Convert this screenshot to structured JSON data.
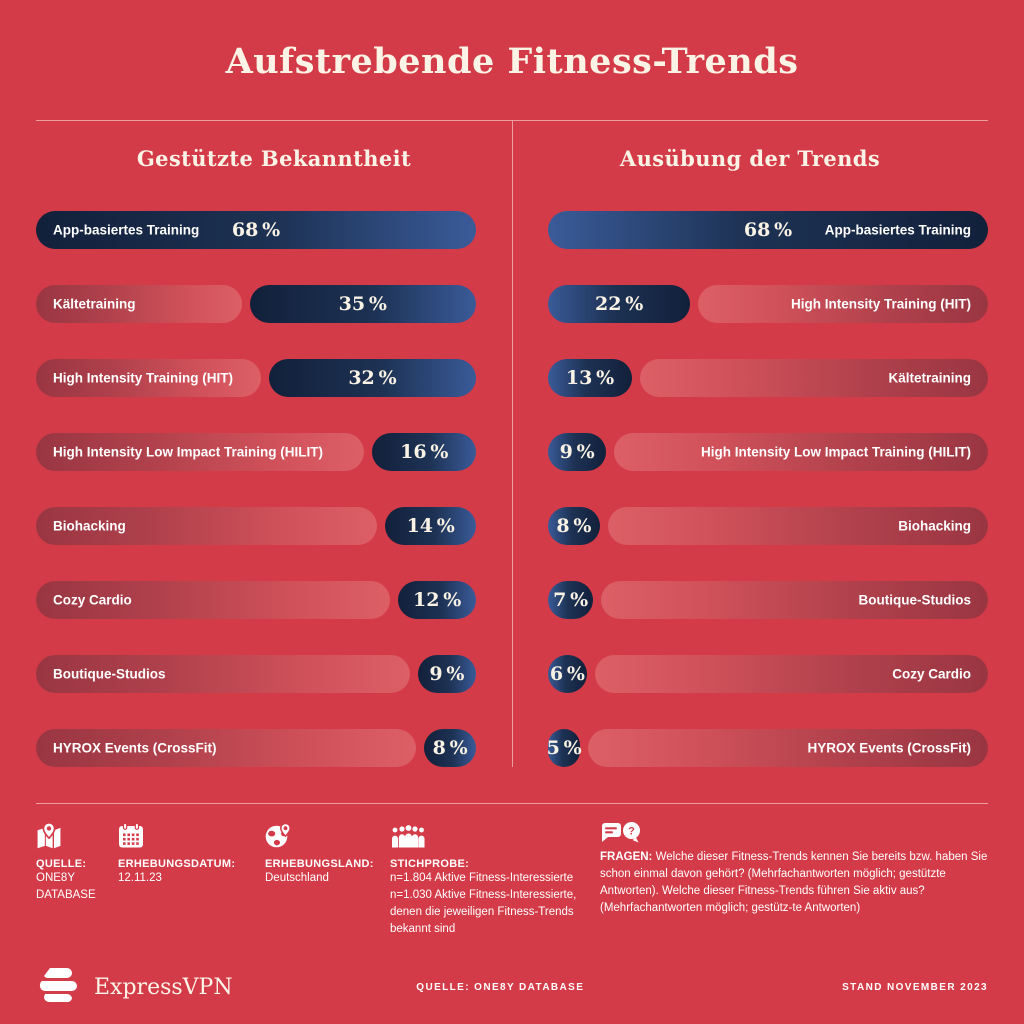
{
  "page": {
    "title": "Aufstrebende Fitness-Trends"
  },
  "colors": {
    "background": "#d43b48",
    "bar_navy_dark": "#12203a",
    "bar_navy_light": "#3a5b99",
    "bar_red_dark": "#993642",
    "bar_red_light": "#dc5f66",
    "text_cream": "#faf3e6",
    "text_white": "#ffffff"
  },
  "chart_data": {
    "type": "bar",
    "title": "Aufstrebende Fitness-Trends",
    "scale_max": 68,
    "grid": false,
    "charts": [
      {
        "title": "Gestützte Bekanntheit",
        "bar_anchor": "right",
        "rows": [
          {
            "label": "App-basiertes Training",
            "value": 68,
            "display": "68 %"
          },
          {
            "label": "Kältetraining",
            "value": 35,
            "display": "35 %"
          },
          {
            "label": "High Intensity Training (HIT)",
            "value": 32,
            "display": "32 %"
          },
          {
            "label": "High Intensity Low Impact Training (HILIT)",
            "value": 16,
            "display": "16 %"
          },
          {
            "label": "Biohacking",
            "value": 14,
            "display": "14 %"
          },
          {
            "label": "Cozy Cardio",
            "value": 12,
            "display": "12 %"
          },
          {
            "label": "Boutique-Studios",
            "value": 9,
            "display": "9 %"
          },
          {
            "label": "HYROX Events (CrossFit)",
            "value": 8,
            "display": "8 %"
          }
        ]
      },
      {
        "title": "Ausübung der Trends",
        "bar_anchor": "left",
        "rows": [
          {
            "label": "App-basiertes Training",
            "value": 68,
            "display": "68 %"
          },
          {
            "label": "High Intensity Training (HIT)",
            "value": 22,
            "display": "22 %"
          },
          {
            "label": "Kältetraining",
            "value": 13,
            "display": "13 %"
          },
          {
            "label": "High Intensity Low Impact Training (HILIT)",
            "value": 9,
            "display": "9 %"
          },
          {
            "label": "Biohacking",
            "value": 8,
            "display": "8 %"
          },
          {
            "label": "Boutique-Studios",
            "value": 7,
            "display": "7 %"
          },
          {
            "label": "Cozy Cardio",
            "value": 6,
            "display": "6 %"
          },
          {
            "label": "HYROX Events (CrossFit)",
            "value": 5,
            "display": "5 %"
          }
        ]
      }
    ]
  },
  "footnotes": [
    {
      "icon": "map-pin-icon",
      "label": "QUELLE:",
      "lines": [
        "ONE8Y",
        "DATABASE"
      ]
    },
    {
      "icon": "calendar-icon",
      "label": "ERHEBUNGSDATUM:",
      "lines": [
        "12.11.23"
      ]
    },
    {
      "icon": "globe-pin-icon",
      "label": "ERHEBUNGSLAND:",
      "lines": [
        "Deutschland"
      ]
    },
    {
      "icon": "people-icon",
      "label": "STICHPROBE:",
      "lines": [
        "n=1.804 Aktive Fitness-Interessierte",
        "n=1.030 Aktive Fitness-Interessierte,",
        "denen die jeweiligen Fitness-Trends",
        "bekannt sind"
      ]
    },
    {
      "icon": "chat-question-icon",
      "label": "FRAGEN:",
      "text": "Welche dieser Fitness-Trends kennen Sie bereits bzw. haben Sie schon einmal davon gehört? (Mehrfachantworten möglich; gestützte Antworten). Welche dieser Fitness-Trends führen Sie aktiv aus? (Mehrfachantworten möglich; gestütz-te Antworten)"
    }
  ],
  "footer": {
    "brand": "ExpressVPN",
    "source": "QUELLE: ONE8Y DATABASE",
    "stand": "STAND NOVEMBER 2023"
  }
}
